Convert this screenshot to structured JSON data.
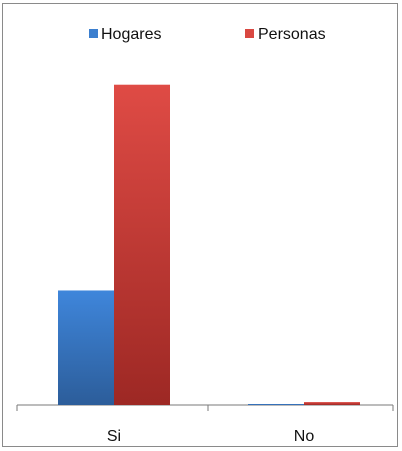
{
  "chart_data": {
    "type": "bar",
    "categories": [
      "Si",
      "No"
    ],
    "series": [
      {
        "name": "Hogares",
        "values": [
          118,
          1
        ],
        "color": "#3b7fcf",
        "color_dark": "#2d5f9d"
      },
      {
        "name": "Personas",
        "values": [
          330,
          3
        ],
        "color": "#d94841",
        "color_dark": "#9f2a26"
      }
    ],
    "ylim": [
      0,
      340
    ],
    "grid": false,
    "legend_position": "top-center"
  }
}
